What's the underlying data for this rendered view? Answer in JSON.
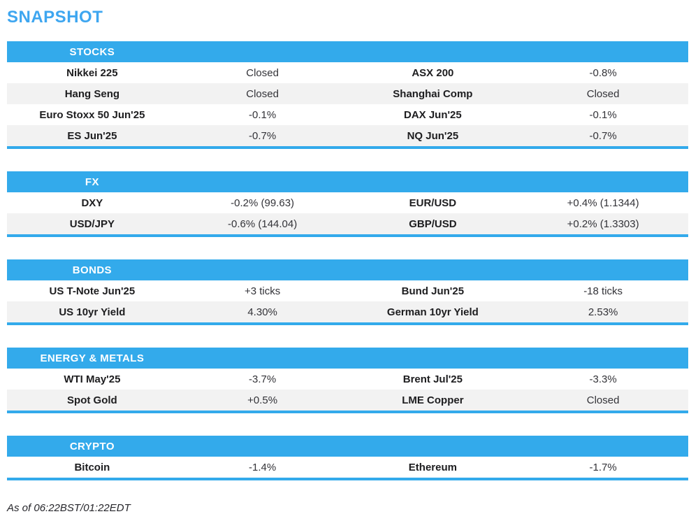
{
  "page": {
    "title": "SNAPSHOT",
    "footer": "As of 06:22BST/01:22EDT"
  },
  "colors": {
    "title_blue": "#3ea6f0",
    "header_blue": "#33aaeb",
    "row_alt_gray": "#f2f2f2"
  },
  "sections": [
    {
      "header": "STOCKS",
      "rows": [
        {
          "cells": [
            "Nikkei 225",
            "Closed",
            "ASX 200",
            "-0.8%"
          ]
        },
        {
          "cells": [
            "Hang Seng",
            "Closed",
            "Shanghai Comp",
            "Closed"
          ]
        },
        {
          "cells": [
            "Euro Stoxx 50 Jun'25",
            "-0.1%",
            "DAX Jun'25",
            "-0.1%"
          ]
        },
        {
          "cells": [
            "ES Jun'25",
            "-0.7%",
            "NQ Jun'25",
            "-0.7%"
          ]
        }
      ]
    },
    {
      "header": "FX",
      "rows": [
        {
          "cells": [
            "DXY",
            "-0.2% (99.63)",
            "EUR/USD",
            "+0.4% (1.1344)"
          ]
        },
        {
          "cells": [
            "USD/JPY",
            "-0.6% (144.04)",
            "GBP/USD",
            "+0.2% (1.3303)"
          ]
        }
      ]
    },
    {
      "header": "BONDS",
      "rows": [
        {
          "cells": [
            "US T-Note Jun'25",
            "+3 ticks",
            "Bund Jun'25",
            "-18 ticks"
          ]
        },
        {
          "cells": [
            "US 10yr Yield",
            "4.30%",
            "German 10yr Yield",
            "2.53%"
          ]
        }
      ]
    },
    {
      "header": "ENERGY & METALS",
      "rows": [
        {
          "cells": [
            "WTI May'25",
            "-3.7%",
            "Brent Jul'25",
            "-3.3%"
          ]
        },
        {
          "cells": [
            "Spot Gold",
            "+0.5%",
            "LME Copper",
            "Closed"
          ]
        }
      ]
    },
    {
      "header": "CRYPTO",
      "rows": [
        {
          "cells": [
            "Bitcoin",
            "-1.4%",
            "Ethereum",
            "-1.7%"
          ]
        }
      ]
    }
  ]
}
